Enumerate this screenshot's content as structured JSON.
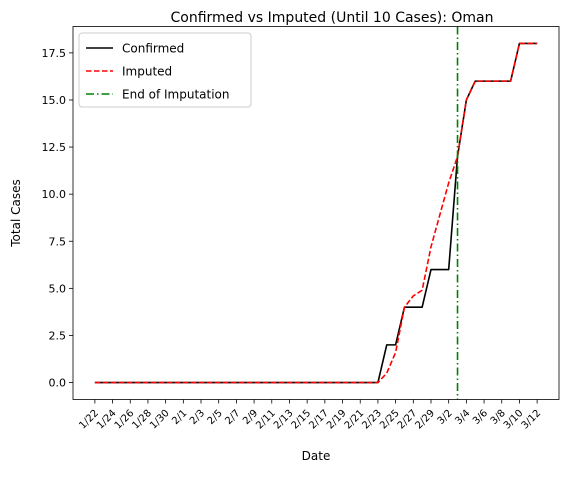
{
  "chart_data": {
    "type": "line",
    "title": "Confirmed vs Imputed (Until 10 Cases): Oman",
    "xlabel": "Date",
    "ylabel": "Total Cases",
    "x": [
      "1/22",
      "1/23",
      "1/24",
      "1/25",
      "1/26",
      "1/27",
      "1/28",
      "1/29",
      "1/30",
      "1/31",
      "2/1",
      "2/2",
      "2/3",
      "2/4",
      "2/5",
      "2/6",
      "2/7",
      "2/8",
      "2/9",
      "2/10",
      "2/11",
      "2/12",
      "2/13",
      "2/14",
      "2/15",
      "2/16",
      "2/17",
      "2/18",
      "2/19",
      "2/20",
      "2/21",
      "2/22",
      "2/23",
      "2/24",
      "2/25",
      "2/26",
      "2/27",
      "2/28",
      "2/29",
      "3/1",
      "3/2",
      "3/3",
      "3/4",
      "3/5",
      "3/6",
      "3/7",
      "3/8",
      "3/9",
      "3/10",
      "3/11",
      "3/12"
    ],
    "xtick_labels": [
      "1/22",
      "1/24",
      "1/26",
      "1/28",
      "1/30",
      "2/1",
      "2/3",
      "2/5",
      "2/7",
      "2/9",
      "2/11",
      "2/13",
      "2/15",
      "2/17",
      "2/19",
      "2/21",
      "2/23",
      "2/25",
      "2/27",
      "2/29",
      "3/2",
      "3/4",
      "3/6",
      "3/8",
      "3/10",
      "3/12"
    ],
    "ylim": [
      -0.9,
      18.9
    ],
    "yticks": [
      "0.0",
      "2.5",
      "5.0",
      "7.5",
      "10.0",
      "12.5",
      "15.0",
      "17.5"
    ],
    "ytick_values": [
      0,
      2.5,
      5,
      7.5,
      10,
      12.5,
      15,
      17.5
    ],
    "series": [
      {
        "name": "Confirmed",
        "color": "#000000",
        "style": "solid",
        "values": [
          0,
          0,
          0,
          0,
          0,
          0,
          0,
          0,
          0,
          0,
          0,
          0,
          0,
          0,
          0,
          0,
          0,
          0,
          0,
          0,
          0,
          0,
          0,
          0,
          0,
          0,
          0,
          0,
          0,
          0,
          0,
          0,
          0,
          2,
          2,
          4,
          4,
          4,
          6,
          6,
          6,
          12,
          15,
          16,
          16,
          16,
          16,
          16,
          18,
          18,
          18
        ]
      },
      {
        "name": "Imputed",
        "color": "#ff0000",
        "style": "dashed",
        "values": [
          0,
          0,
          0,
          0,
          0,
          0,
          0,
          0,
          0,
          0,
          0,
          0,
          0,
          0,
          0,
          0,
          0,
          0,
          0,
          0,
          0,
          0,
          0,
          0,
          0,
          0,
          0,
          0,
          0,
          0,
          0,
          0,
          0,
          0.5,
          1.6,
          4,
          4.6,
          4.9,
          7.2,
          8.9,
          10.6,
          12,
          15,
          16,
          16,
          16,
          16,
          16,
          18,
          18,
          18
        ]
      }
    ],
    "vline": {
      "name": "End of Imputation",
      "x": "3/3",
      "color": "#008000",
      "style": "dashdot"
    },
    "legend": {
      "position": "upper-left",
      "entries": [
        "Confirmed",
        "Imputed",
        "End of Imputation"
      ]
    }
  }
}
